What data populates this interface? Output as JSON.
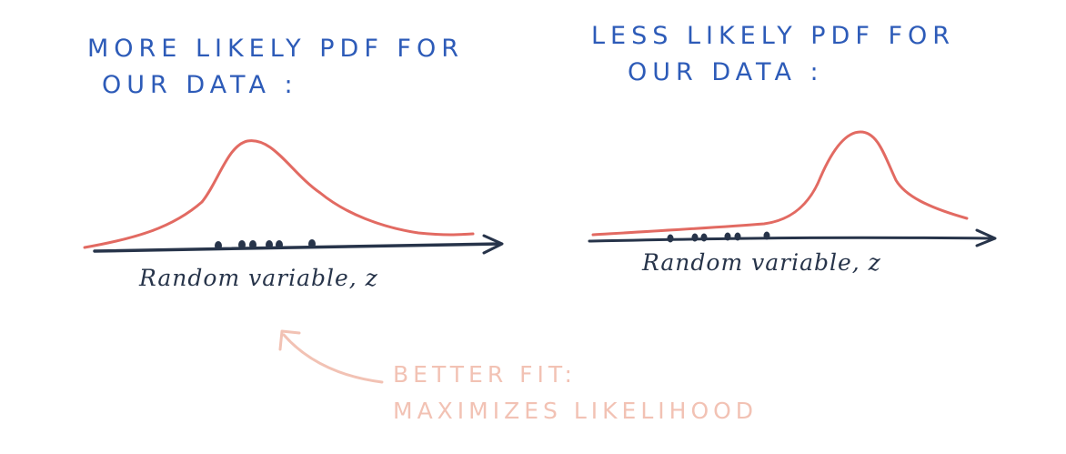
{
  "left_panel": {
    "title_line1": "MORE LIKELY PDF FOR",
    "title_line2": "OUR DATA :",
    "axis_label": "Random variable, z"
  },
  "right_panel": {
    "title_line1": "LESS LIKELY PDF FOR",
    "title_line2": "OUR DATA :",
    "axis_label": "Random variable, z"
  },
  "annotation": {
    "line1": "BETTER FIT:",
    "line2": "MAXIMIZES LIKELIHOOD"
  },
  "colors": {
    "title": "#2d5bb8",
    "axis": "#27344a",
    "curve": "#e26a62",
    "annotation": "#f2c2b4"
  }
}
